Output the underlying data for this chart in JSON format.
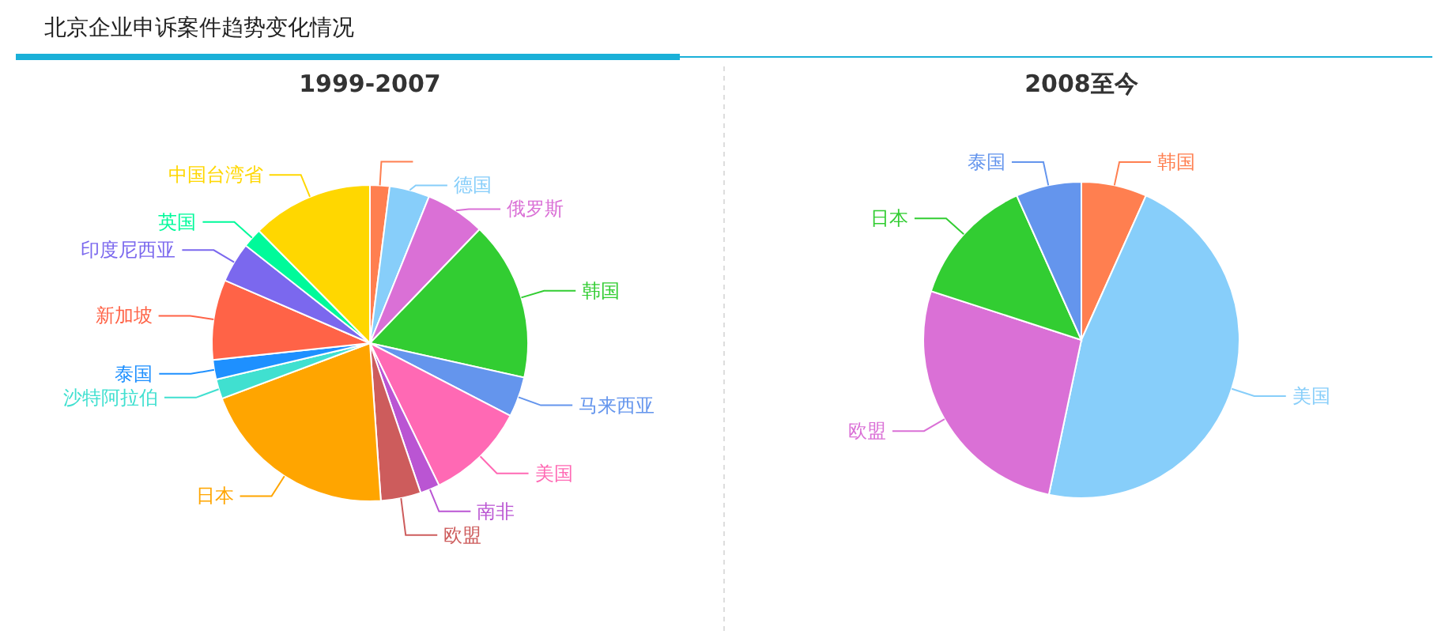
{
  "chart_data": [
    {
      "type": "pie",
      "title": "1999-2007",
      "annotations": [
        "北京企业申诉案件趋势变化情况"
      ],
      "categories": [
        null,
        "德国",
        "俄罗斯",
        "韩国",
        "马来西亚",
        "美国",
        "南非",
        "欧盟",
        "日本",
        "沙特阿拉伯",
        "泰国",
        "新加坡",
        "印度尼西亚",
        "英国",
        "中国台湾省"
      ],
      "values": [
        2.0,
        4.1,
        6.1,
        16.3,
        4.1,
        10.2,
        2.0,
        4.1,
        20.4,
        2.0,
        2.0,
        8.2,
        4.1,
        2.0,
        12.4
      ],
      "colors": [
        "#ff7f50",
        "#87cefa",
        "#da70d6",
        "#32cd32",
        "#6495ed",
        "#ff69b4",
        "#ba55d3",
        "#cd5c5c",
        "#ffa500",
        "#40e0d0",
        "#1e90ff",
        "#ff6347",
        "#7b68ee",
        "#00fa9a",
        "#ffd700"
      ]
    },
    {
      "type": "pie",
      "title": "2008至今",
      "categories": [
        "韩国",
        "美国",
        "欧盟",
        "日本",
        "泰国"
      ],
      "values": [
        6.7,
        46.6,
        26.7,
        13.3,
        6.7
      ],
      "colors": [
        "#ff7f50",
        "#87cefa",
        "#da70d6",
        "#32cd32",
        "#6495ed"
      ]
    }
  ]
}
